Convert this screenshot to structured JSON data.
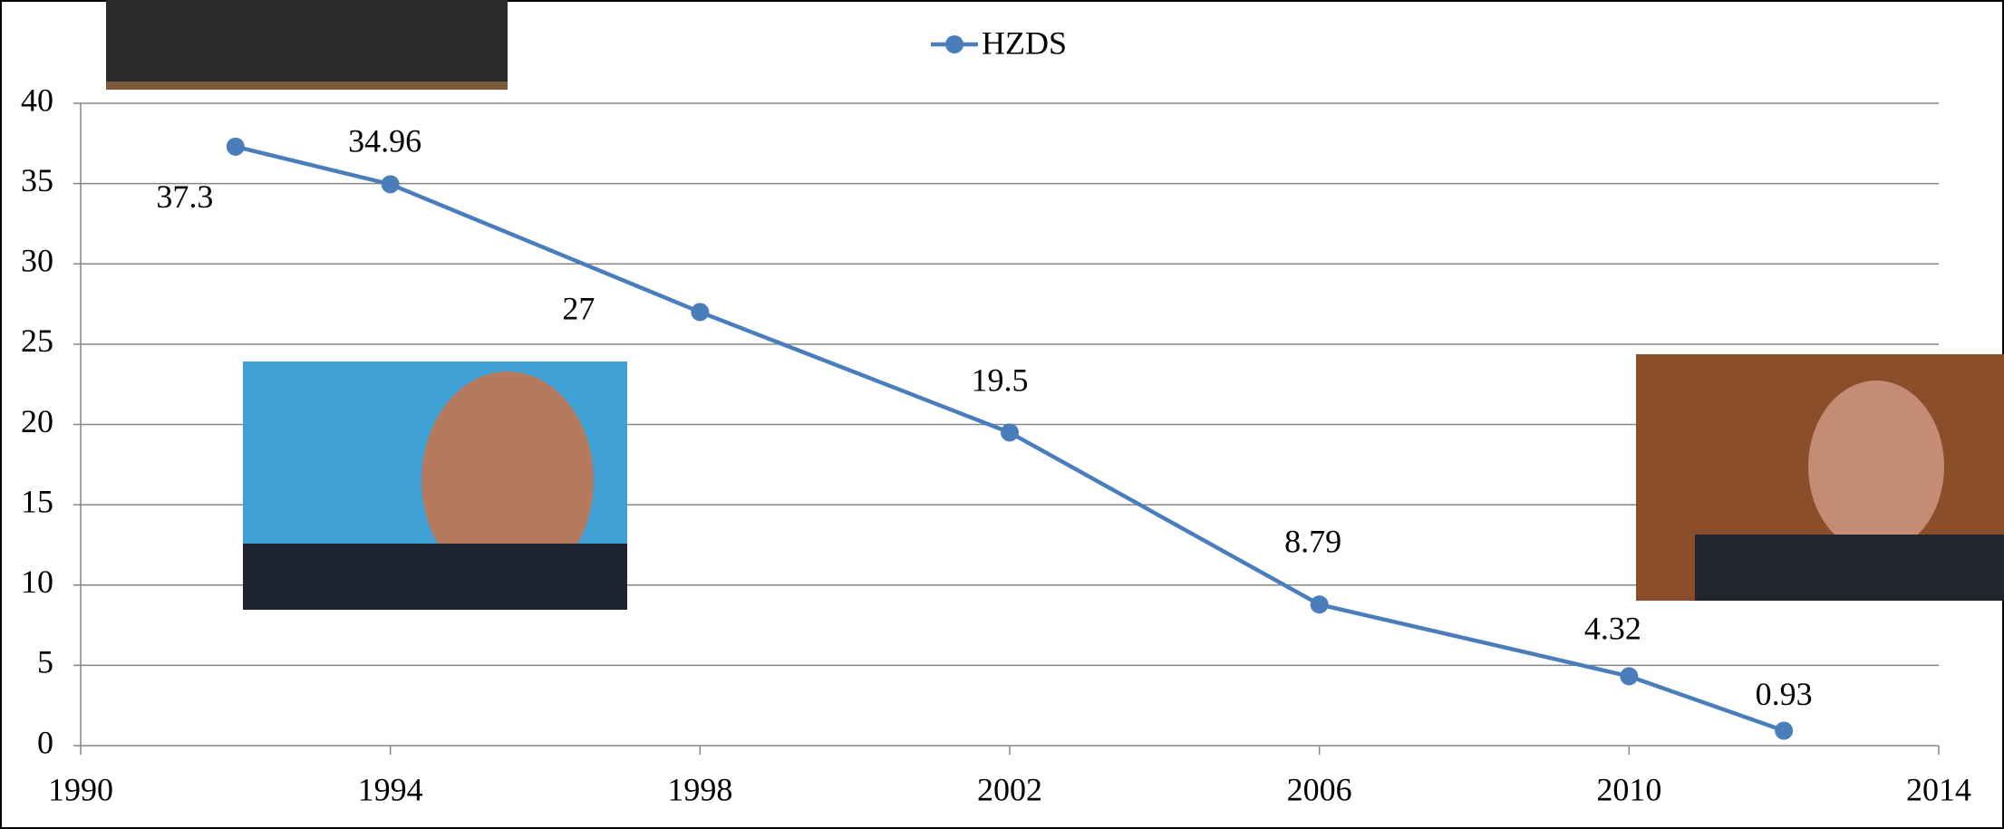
{
  "chart_data": {
    "type": "line",
    "x": [
      1992,
      1994,
      1998,
      2002,
      2006,
      2010,
      2012
    ],
    "series": [
      {
        "name": "HZDS",
        "color": "#4a7ebb",
        "values": [
          37.3,
          34.96,
          27,
          19.5,
          8.79,
          4.32,
          0.93
        ]
      }
    ],
    "xlim": [
      1990,
      2014
    ],
    "xticks": [
      1990,
      1994,
      1998,
      2002,
      2006,
      2010,
      2014
    ],
    "ylim": [
      0,
      40
    ],
    "yticks": [
      0,
      5,
      10,
      15,
      20,
      25,
      30,
      35,
      40
    ],
    "grid": true,
    "legend": "top"
  }
}
